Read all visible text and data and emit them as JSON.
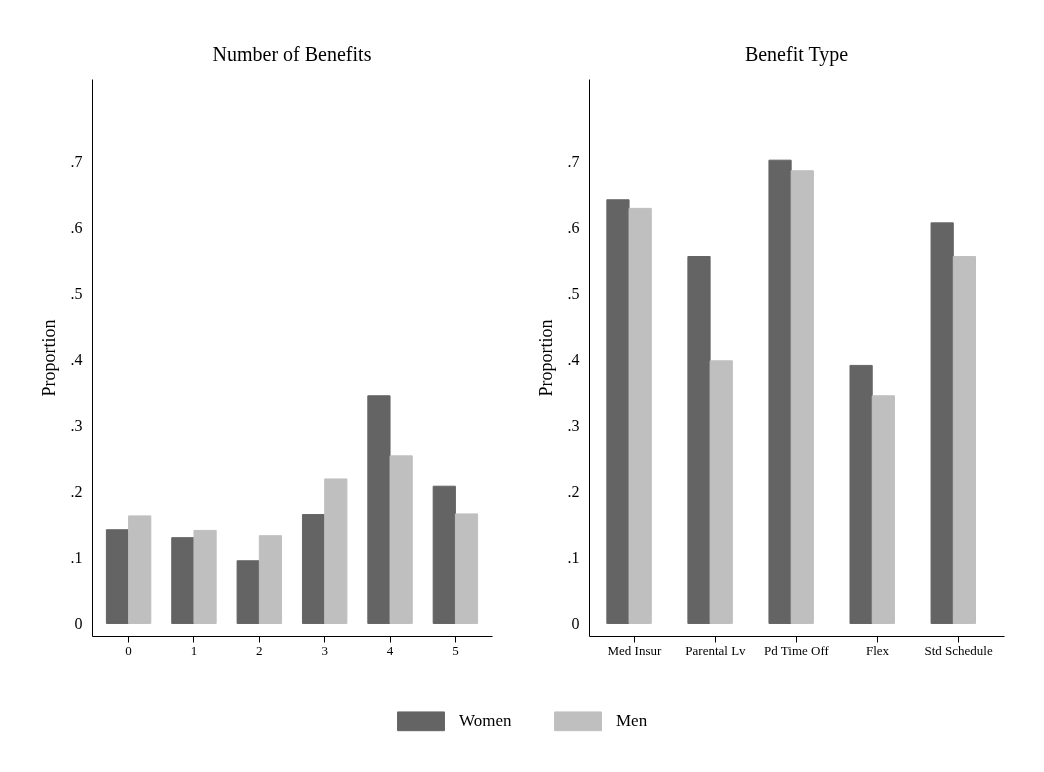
{
  "chart_data": [
    {
      "type": "bar",
      "title": "Number of Benefits",
      "ylabel": "Proportion",
      "categories": [
        "0",
        "1",
        "2",
        "3",
        "4",
        "5"
      ],
      "series": [
        {
          "name": "Women",
          "color": "#646464",
          "values": [
            0.142,
            0.13,
            0.095,
            0.165,
            0.345,
            0.208
          ]
        },
        {
          "name": "Men",
          "color": "#bfbfbf",
          "values": [
            0.163,
            0.141,
            0.133,
            0.219,
            0.254,
            0.166
          ]
        }
      ],
      "ylim": [
        -0.019,
        0.825
      ],
      "yticks": [
        0,
        {
          "value": 0.1,
          "label": ".1"
        },
        {
          "value": 0.2,
          "label": ".2"
        },
        {
          "value": 0.3,
          "label": ".3"
        },
        {
          "value": 0.4,
          "label": ".4"
        },
        {
          "value": 0.5,
          "label": ".5"
        },
        {
          "value": 0.6,
          "label": ".6"
        },
        {
          "value": 0.7,
          "label": ".7"
        }
      ],
      "legend": "bottom"
    },
    {
      "type": "bar",
      "title": "Benefit Type",
      "ylabel": "Proportion",
      "categories": [
        "Med Insur",
        "Parental Lv",
        "Pd Time Off",
        "Flex",
        "Std Schedule"
      ],
      "series": [
        {
          "name": "Women",
          "color": "#646464",
          "values": [
            0.642,
            0.556,
            0.702,
            0.391,
            0.607
          ]
        },
        {
          "name": "Men",
          "color": "#bfbfbf",
          "values": [
            0.629,
            0.398,
            0.686,
            0.345,
            0.556
          ]
        }
      ],
      "ylim": [
        -0.019,
        0.825
      ],
      "yticks": [
        0,
        {
          "value": 0.1,
          "label": ".1"
        },
        {
          "value": 0.2,
          "label": ".2"
        },
        {
          "value": 0.3,
          "label": ".3"
        },
        {
          "value": 0.4,
          "label": ".4"
        },
        {
          "value": 0.5,
          "label": ".5"
        },
        {
          "value": 0.6,
          "label": ".6"
        },
        {
          "value": 0.7,
          "label": ".7"
        }
      ],
      "legend": "bottom"
    }
  ]
}
